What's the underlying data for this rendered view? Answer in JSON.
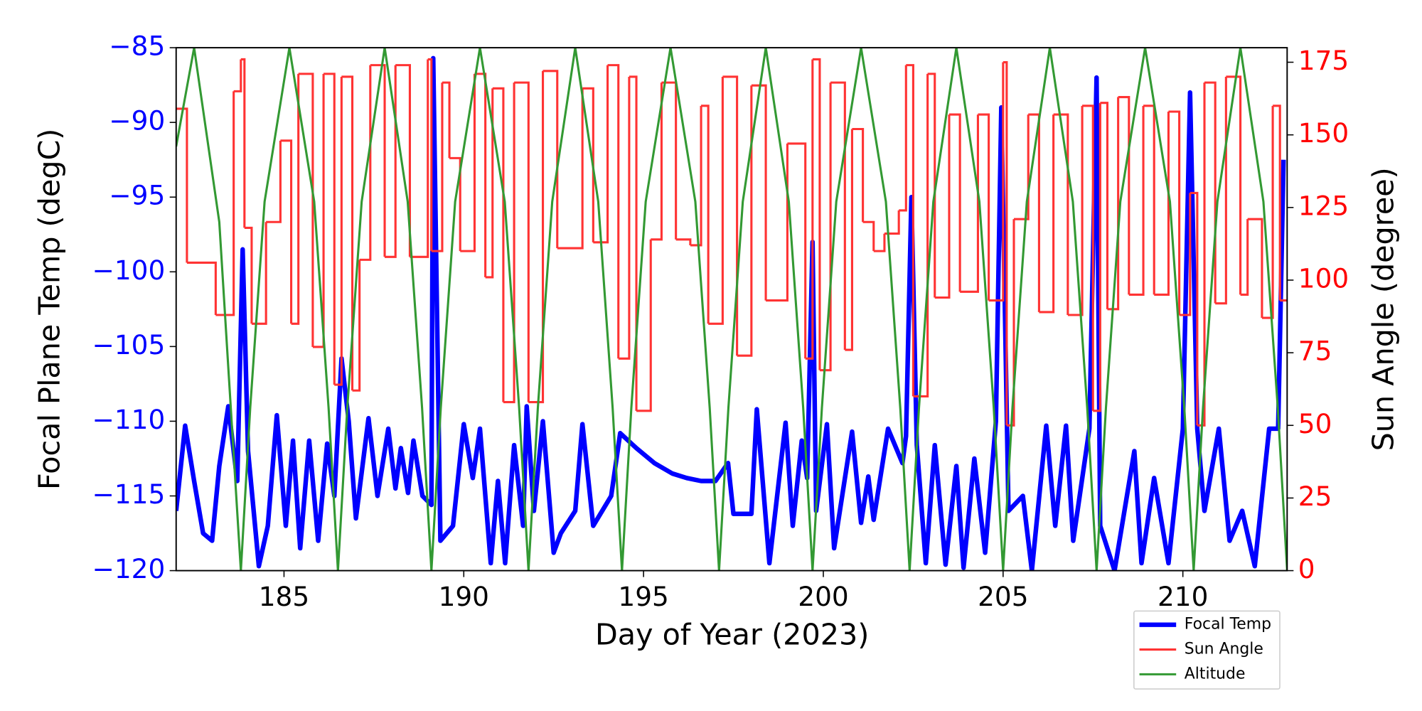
{
  "chart_data": {
    "type": "line",
    "xlabel": "Day of Year (2023)",
    "ylabel": "Focal Plane Temp (degC)",
    "y2label": "Sun Angle (degree)",
    "xlim": [
      182,
      212.9
    ],
    "xticks": [
      185,
      190,
      195,
      200,
      205,
      210
    ],
    "ylim": [
      -120,
      -85
    ],
    "yticks": [
      {
        "value": -120,
        "label": "−120"
      },
      {
        "value": -115,
        "label": "−115"
      },
      {
        "value": -110,
        "label": "−110"
      },
      {
        "value": -105,
        "label": "−105"
      },
      {
        "value": -100,
        "label": "−100"
      },
      {
        "value": -95,
        "label": "−95"
      },
      {
        "value": -90,
        "label": "−90"
      },
      {
        "value": -85,
        "label": "−85"
      }
    ],
    "y2lim": [
      0,
      180
    ],
    "y2ticks": [
      0,
      25,
      50,
      75,
      100,
      125,
      150,
      175
    ],
    "ycolor": "#0000ff",
    "y2color": "#ff0000",
    "legend": "below right",
    "series": [
      {
        "name": "Focal Temp",
        "color": "#0000ff",
        "axis": "y",
        "x": [
          182.0,
          182.25,
          182.5,
          182.75,
          183.0,
          183.2,
          183.45,
          183.7,
          183.85,
          184.0,
          184.3,
          184.55,
          184.8,
          185.05,
          185.25,
          185.45,
          185.7,
          185.95,
          186.2,
          186.4,
          186.6,
          186.8,
          187.0,
          187.35,
          187.6,
          187.9,
          188.1,
          188.25,
          188.45,
          188.6,
          188.85,
          189.1,
          189.15,
          189.35,
          189.7,
          190.0,
          190.25,
          190.45,
          190.75,
          190.95,
          191.15,
          191.4,
          191.65,
          191.75,
          191.95,
          192.2,
          192.5,
          192.7,
          193.1,
          193.3,
          193.6,
          194.1,
          194.35,
          194.8,
          195.3,
          195.8,
          196.2,
          196.6,
          197.0,
          197.35,
          197.5,
          198.0,
          198.15,
          198.5,
          198.95,
          199.15,
          199.4,
          199.55,
          199.7,
          199.8,
          200.1,
          200.3,
          200.8,
          201.05,
          201.25,
          201.4,
          201.8,
          202.2,
          202.3,
          202.45,
          202.6,
          202.85,
          203.1,
          203.4,
          203.7,
          203.9,
          204.2,
          204.5,
          204.8,
          204.95,
          205.15,
          205.55,
          205.8,
          206.2,
          206.45,
          206.75,
          206.95,
          207.4,
          207.6,
          207.7,
          208.1,
          208.65,
          208.85,
          209.2,
          209.6,
          210.0,
          210.2,
          210.4,
          210.6,
          211.0,
          211.3,
          211.65,
          212.0,
          212.4,
          212.65,
          212.8
        ],
        "values": [
          -116,
          -110.3,
          -114,
          -117.5,
          -118,
          -113,
          -109,
          -114,
          -98.5,
          -112,
          -119.7,
          -117,
          -109.6,
          -117,
          -111.3,
          -118.5,
          -111.3,
          -118,
          -111.5,
          -115,
          -105.8,
          -110,
          -116.5,
          -109.8,
          -115,
          -110.5,
          -114.5,
          -111.8,
          -114.8,
          -111.3,
          -115,
          -115.6,
          -85.7,
          -118,
          -117,
          -110.2,
          -113.8,
          -110.5,
          -119.5,
          -114,
          -119.5,
          -111.6,
          -117,
          -109,
          -116,
          -110,
          -118.8,
          -117.5,
          -116,
          -110.2,
          -117,
          -115,
          -110.8,
          -111.8,
          -112.8,
          -113.5,
          -113.8,
          -114,
          -114,
          -112.8,
          -116.2,
          -116.2,
          -109.2,
          -119.5,
          -110.1,
          -117,
          -111.3,
          -113.8,
          -98,
          -116,
          -110.2,
          -118.5,
          -110.7,
          -116.8,
          -113.7,
          -116.6,
          -110.5,
          -112.8,
          -111,
          -95,
          -111.6,
          -119.5,
          -111.6,
          -119.6,
          -113,
          -119.8,
          -112.5,
          -118.8,
          -110,
          -89,
          -116,
          -115,
          -120,
          -110.3,
          -117,
          -110.3,
          -118,
          -110.5,
          -87,
          -117,
          -120,
          -112,
          -119.5,
          -113.8,
          -119.5,
          -110.5,
          -88,
          -110.5,
          -116,
          -110.5,
          -118,
          -116,
          -119.7,
          -110.5,
          -110.5,
          -92.5
        ]
      },
      {
        "name": "Sun Angle",
        "color": "#ff3333",
        "axis": "y2",
        "drawstyle": "steps-post",
        "x": [
          182.0,
          182.3,
          183.1,
          183.6,
          183.8,
          183.9,
          184.1,
          184.5,
          184.9,
          185.2,
          185.4,
          185.8,
          186.1,
          186.4,
          186.6,
          186.9,
          187.1,
          187.4,
          187.8,
          188.1,
          188.5,
          189.0,
          189.1,
          189.4,
          189.6,
          189.9,
          190.3,
          190.6,
          190.8,
          191.1,
          191.4,
          191.8,
          192.2,
          192.6,
          193.3,
          193.6,
          194.0,
          194.3,
          194.6,
          194.8,
          195.2,
          195.5,
          195.9,
          196.3,
          196.6,
          196.8,
          197.2,
          197.6,
          198.0,
          198.4,
          199.0,
          199.5,
          199.7,
          199.9,
          200.2,
          200.6,
          200.8,
          201.1,
          201.4,
          201.7,
          202.1,
          202.3,
          202.5,
          202.9,
          203.1,
          203.5,
          203.8,
          204.3,
          204.6,
          205.0,
          205.1,
          205.3,
          205.7,
          206.0,
          206.4,
          206.8,
          207.2,
          207.5,
          207.7,
          207.9,
          208.2,
          208.5,
          208.9,
          209.2,
          209.6,
          209.9,
          210.2,
          210.4,
          210.6,
          210.9,
          211.2,
          211.6,
          211.8,
          212.2,
          212.5,
          212.7,
          212.9
        ],
        "values": [
          159,
          106,
          88,
          165,
          176,
          118,
          85,
          120,
          148,
          85,
          171,
          77,
          171,
          64,
          170,
          62,
          107,
          174,
          108,
          174,
          108,
          176,
          110,
          168,
          142,
          110,
          171,
          101,
          166,
          58,
          168,
          58,
          172,
          111,
          166,
          113,
          174,
          73,
          170,
          55,
          114,
          168,
          114,
          112,
          160,
          85,
          170,
          74,
          167,
          93,
          147,
          73,
          176,
          69,
          168,
          76,
          152,
          120,
          110,
          116,
          124,
          174,
          60,
          171,
          94,
          157,
          96,
          157,
          93,
          175,
          50,
          121,
          157,
          89,
          157,
          88,
          160,
          55,
          161,
          90,
          163,
          95,
          160,
          95,
          158,
          88,
          130,
          50,
          168,
          92,
          170,
          95,
          121,
          87,
          160,
          93,
          93
        ]
      },
      {
        "name": "Altitude",
        "color": "#339933",
        "axis": "y2",
        "x": [
          182.0,
          182.5,
          183.2,
          183.8,
          184.06,
          184.46,
          185.15,
          185.84,
          186.24,
          186.5,
          186.76,
          187.16,
          187.8,
          188.44,
          188.84,
          189.1,
          189.36,
          189.76,
          190.45,
          191.14,
          191.54,
          191.8,
          192.06,
          192.46,
          193.1,
          193.74,
          194.14,
          194.4,
          194.66,
          195.06,
          195.75,
          196.44,
          196.84,
          197.1,
          197.36,
          197.76,
          198.4,
          199.04,
          199.44,
          199.7,
          199.96,
          200.36,
          201.05,
          201.74,
          202.14,
          202.4,
          202.66,
          203.06,
          203.7,
          204.34,
          204.74,
          205.0,
          205.26,
          205.66,
          206.3,
          206.94,
          207.34,
          207.6,
          207.86,
          208.26,
          208.95,
          209.64,
          210.04,
          210.3,
          210.56,
          210.96,
          211.6,
          212.24,
          212.64,
          212.9
        ],
        "values": [
          146,
          180,
          120,
          0,
          56,
          127,
          180,
          127,
          56,
          0,
          56,
          127,
          180,
          127,
          56,
          0,
          56,
          127,
          180,
          127,
          56,
          0,
          56,
          127,
          180,
          127,
          56,
          0,
          56,
          127,
          180,
          127,
          56,
          0,
          56,
          127,
          180,
          127,
          56,
          0,
          56,
          127,
          180,
          127,
          56,
          0,
          56,
          127,
          180,
          127,
          56,
          0,
          56,
          127,
          180,
          127,
          56,
          0,
          56,
          127,
          180,
          127,
          56,
          0,
          56,
          127,
          180,
          127,
          56,
          0
        ]
      }
    ]
  }
}
